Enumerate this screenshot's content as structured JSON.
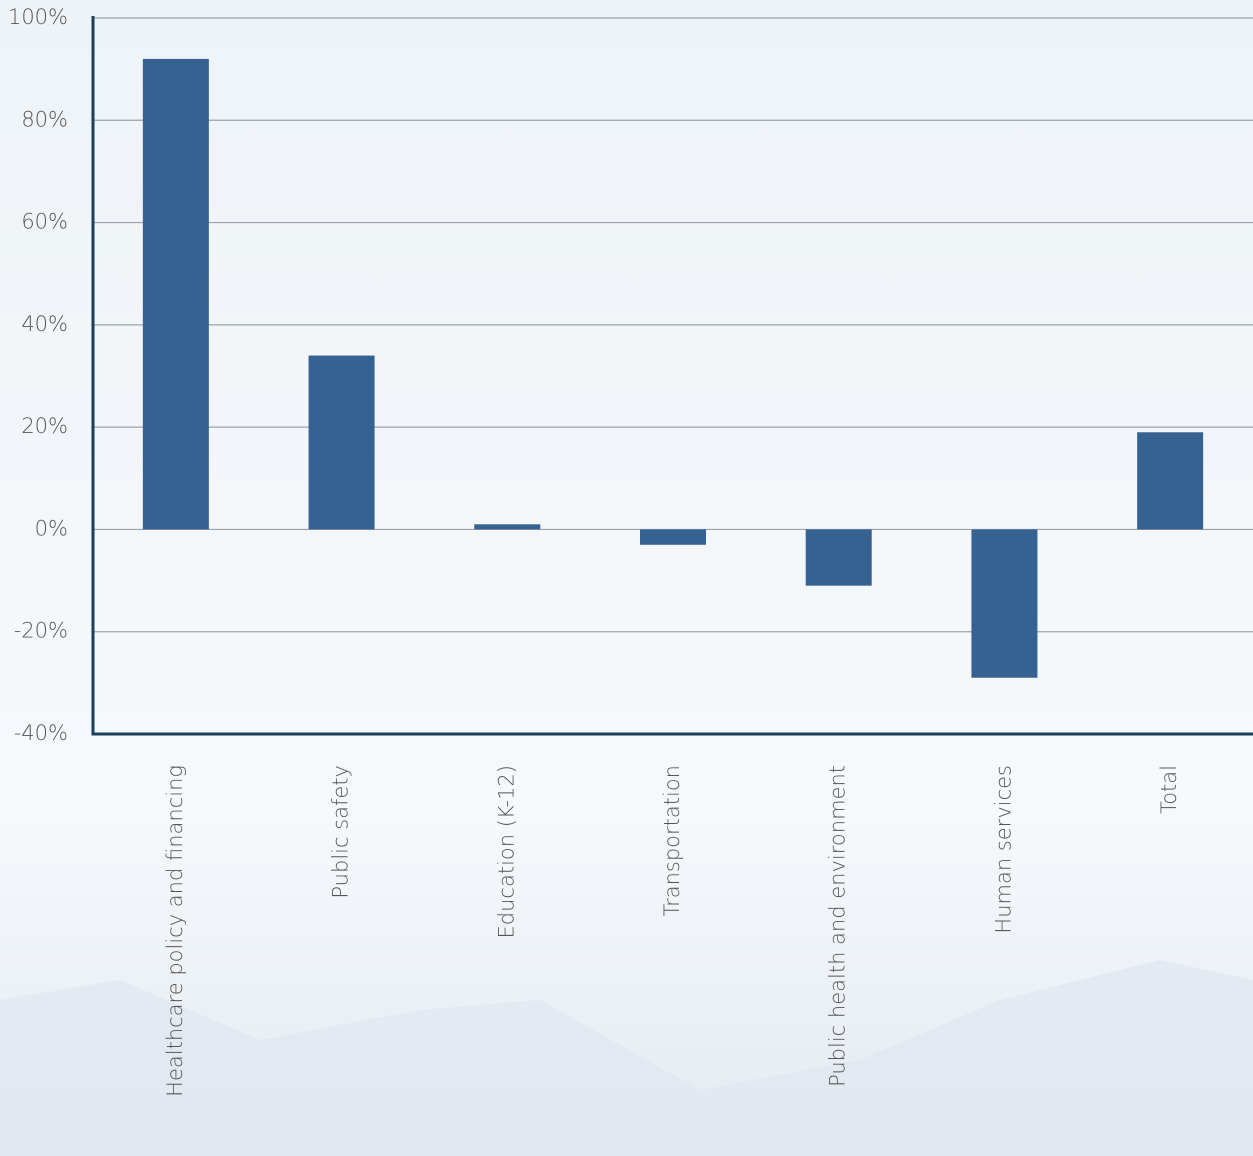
{
  "chart_data": {
    "type": "bar",
    "categories": [
      "Healthcare policy and financing",
      "Public safety",
      "Education (K-12)",
      "Transportation",
      "Public health and environment",
      "Human services",
      "Total"
    ],
    "values": [
      92,
      34,
      1,
      -3,
      -11,
      -29,
      19
    ],
    "color": "#366292",
    "ylim": [
      -40,
      100
    ],
    "yticks": [
      {
        "value": -40,
        "label": "-40%"
      },
      {
        "value": -20,
        "label": "-20%"
      },
      {
        "value": 0,
        "label": "0%"
      },
      {
        "value": 20,
        "label": "20%"
      },
      {
        "value": 40,
        "label": "40%"
      },
      {
        "value": 60,
        "label": "60%"
      },
      {
        "value": 80,
        "label": "80%"
      },
      {
        "value": 100,
        "label": "100%"
      }
    ],
    "grid": true
  }
}
